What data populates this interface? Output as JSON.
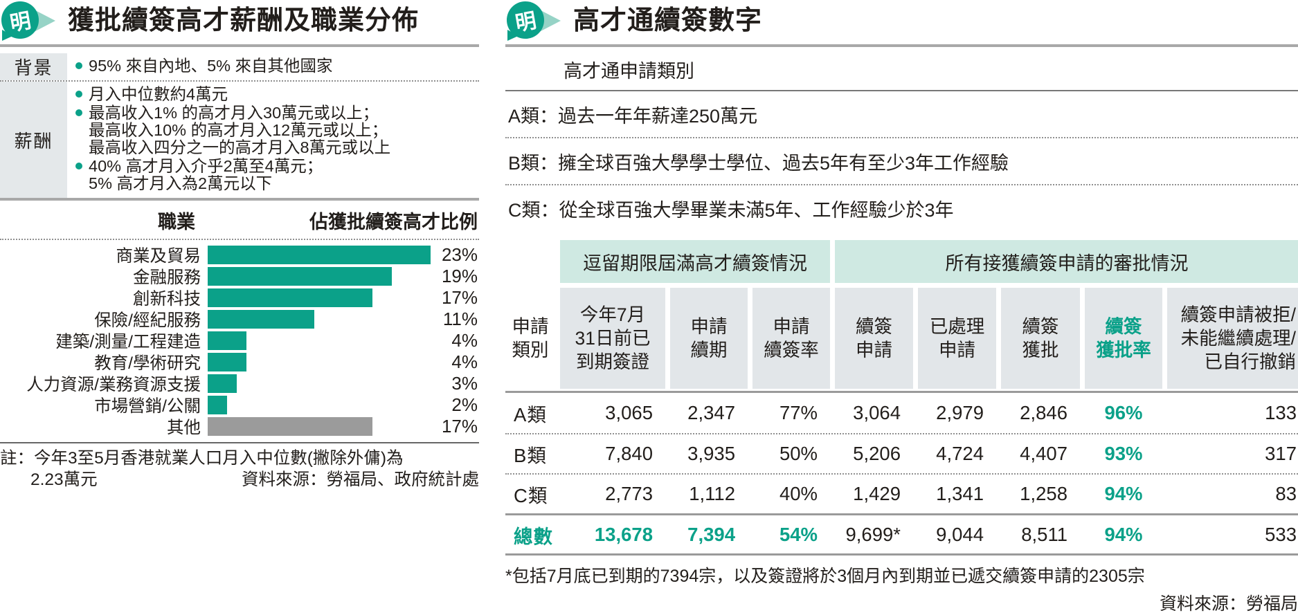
{
  "logo_char": "明",
  "colors": {
    "accent": "#0ba189",
    "group_header_bg": "#cfe9e2",
    "column_header_bg": "#e2e6e9",
    "row_label_bg": "#e4e8ea",
    "bar_teal": "#0ba189",
    "bar_gray": "#9b9b9b"
  },
  "left_panel": {
    "title": "獲批續簽高才薪酬及職業分佈",
    "info": {
      "rows": [
        {
          "label": "背景",
          "bullets": [
            [
              "95% 來自內地、5% 來自其他國家"
            ]
          ]
        },
        {
          "label": "薪酬",
          "bullets": [
            [
              "月入中位數約4萬元"
            ],
            [
              "最高收入1% 的高才月入30萬元或以上；",
              "最高收入10% 的高才月入12萬元或以上；",
              "最高收入四分之一的高才月入8萬元或以上"
            ],
            [
              "40% 高才月入介乎2萬至4萬元；",
              "5% 高才月入為2萬元以下"
            ]
          ]
        }
      ]
    },
    "chart": {
      "col_label": "職業",
      "col_value": "佔獲批續簽高才比例",
      "unit": "%",
      "rows": [
        {
          "label": "商業及貿易",
          "value": 23,
          "color": "teal"
        },
        {
          "label": "金融服務",
          "value": 19,
          "color": "teal"
        },
        {
          "label": "創新科技",
          "value": 17,
          "color": "teal"
        },
        {
          "label": "保險/經紀服務",
          "value": 11,
          "color": "teal"
        },
        {
          "label": "建築/測量/工程建造",
          "value": 4,
          "color": "teal"
        },
        {
          "label": "教育/學術研究",
          "value": 4,
          "color": "teal"
        },
        {
          "label": "人力資源/業務資源支援",
          "value": 3,
          "color": "teal"
        },
        {
          "label": "市場營銷/公關",
          "value": 2,
          "color": "teal"
        },
        {
          "label": "其他",
          "value": 17,
          "color": "gray"
        }
      ]
    },
    "note_line1": "註：今年3至5月香港就業人口月入中位數(撇除外傭)為",
    "note_line2": "2.23萬元",
    "source": "資料來源：勞福局、政府統計處"
  },
  "right_panel": {
    "title": "高才通續簽數字",
    "category_header": "高才通申請類別",
    "sep": "：",
    "categories": [
      {
        "label": "A類",
        "desc": "過去一年年薪達250萬元"
      },
      {
        "label": "B類",
        "desc": "擁全球百強大學學士學位、過去5年有至少3年工作經驗"
      },
      {
        "label": "C類",
        "desc": "從全球百強大學畢業未滿5年、工作經驗少於3年"
      }
    ],
    "table": {
      "groups": [
        {
          "label": "逗留期限屆滿高才續簽情況"
        },
        {
          "label": "所有接獲續簽申請的審批情況"
        }
      ],
      "columns": [
        {
          "lines": [
            "申請",
            "類別"
          ]
        },
        {
          "lines": [
            "今年7月",
            "31日前已",
            "到期簽證"
          ]
        },
        {
          "lines": [
            "申請",
            "續期"
          ]
        },
        {
          "lines": [
            "申請",
            "續簽率"
          ]
        },
        {
          "lines": [
            "續簽",
            "申請"
          ]
        },
        {
          "lines": [
            "已處理",
            "申請"
          ]
        },
        {
          "lines": [
            "續簽",
            "獲批"
          ]
        },
        {
          "lines": [
            "續簽",
            "獲批率"
          ],
          "highlight": true
        },
        {
          "lines": [
            "續簽申請被拒/",
            "未能繼續處理/",
            "已自行撤銷"
          ]
        }
      ],
      "rows": [
        {
          "label": "A類",
          "values": [
            "3,065",
            "2,347",
            "77%",
            "3,064",
            "2,979",
            "2,846",
            "96%",
            "133"
          ],
          "total": false
        },
        {
          "label": "B類",
          "values": [
            "7,840",
            "3,935",
            "50%",
            "5,206",
            "4,724",
            "4,407",
            "93%",
            "317"
          ],
          "total": false
        },
        {
          "label": "C類",
          "values": [
            "2,773",
            "1,112",
            "40%",
            "1,429",
            "1,341",
            "1,258",
            "94%",
            "83"
          ],
          "total": false
        },
        {
          "label": "總數",
          "values": [
            "13,678",
            "7,394",
            "54%",
            "9,699*",
            "9,044",
            "8,511",
            "94%",
            "533"
          ],
          "total": true
        }
      ]
    },
    "footnote": "*包括7月底已到期的7394宗，以及簽證將於3個月內到期並已遞交續簽申請的2305宗",
    "source": "資料來源：勞福局"
  },
  "chart_data": [
    {
      "type": "bar",
      "orientation": "horizontal",
      "title": "獲批續簽高才薪酬及職業分佈",
      "xlabel": "佔獲批續簽高才比例",
      "ylabel": "職業",
      "unit": "%",
      "xlim": [
        0,
        23
      ],
      "grid": false,
      "legend": "none",
      "categories": [
        "商業及貿易",
        "金融服務",
        "創新科技",
        "保險/經紀服務",
        "建築/測量/工程建造",
        "教育/學術研究",
        "人力資源/業務資源支援",
        "市場營銷/公關",
        "其他"
      ],
      "values": [
        23,
        19,
        17,
        11,
        4,
        4,
        3,
        2,
        17
      ],
      "bar_colors": [
        "#0ba189",
        "#0ba189",
        "#0ba189",
        "#0ba189",
        "#0ba189",
        "#0ba189",
        "#0ba189",
        "#0ba189",
        "#9b9b9b"
      ]
    },
    {
      "type": "table",
      "title": "高才通續簽數字",
      "column_groups": [
        "逗留期限屆滿高才續簽情況",
        "所有接獲續簽申請的審批情況"
      ],
      "columns": [
        "申請類別",
        "今年7月31日前已到期簽證",
        "申請續期",
        "申請續簽率",
        "續簽申請",
        "已處理申請",
        "續簽獲批",
        "續簽獲批率",
        "續簽申請被拒/未能繼續處理/已自行撤銷"
      ],
      "rows": [
        [
          "A類",
          "3,065",
          "2,347",
          "77%",
          "3,064",
          "2,979",
          "2,846",
          "96%",
          "133"
        ],
        [
          "B類",
          "7,840",
          "3,935",
          "50%",
          "5,206",
          "4,724",
          "4,407",
          "93%",
          "317"
        ],
        [
          "C類",
          "2,773",
          "1,112",
          "40%",
          "1,429",
          "1,341",
          "1,258",
          "94%",
          "83"
        ],
        [
          "總數",
          "13,678",
          "7,394",
          "54%",
          "9,699*",
          "9,044",
          "8,511",
          "94%",
          "533"
        ]
      ]
    }
  ]
}
